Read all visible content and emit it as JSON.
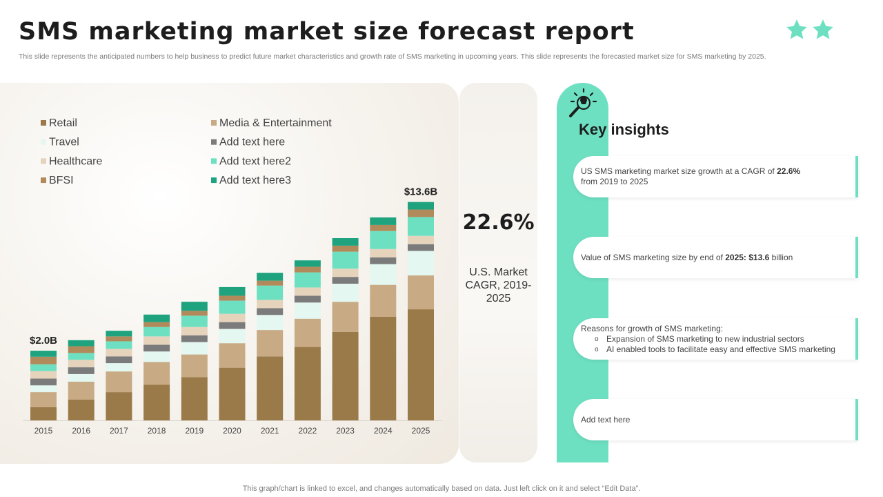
{
  "title": "SMS marketing market size forecast report",
  "subtitle": "This slide represents the anticipated numbers to help business to predict future market characteristics and growth rate of SMS  marketing in upcoming years. This slide represents the forecasted market size for SMS marketing by 2025.",
  "colors": {
    "accent": "#6ee0c2",
    "dark_green": "#1fa37f"
  },
  "chart_data": {
    "type": "bar",
    "stacked": true,
    "categories": [
      "2015",
      "2016",
      "2017",
      "2018",
      "2019",
      "2020",
      "2021",
      "2022",
      "2023",
      "2024",
      "2025"
    ],
    "series": [
      {
        "name": "Retail",
        "color": "#9b7a4a",
        "values": [
          0.35,
          0.55,
          0.75,
          0.95,
          1.15,
          1.4,
          1.7,
          1.95,
          2.35,
          2.75,
          2.95
        ]
      },
      {
        "name": "Media & Entertainment",
        "color": "#c8aa84",
        "values": [
          0.4,
          0.48,
          0.55,
          0.6,
          0.6,
          0.65,
          0.7,
          0.75,
          0.8,
          0.85,
          0.9
        ]
      },
      {
        "name": "Travel",
        "color": "#e4f7f1",
        "values": [
          0.18,
          0.2,
          0.22,
          0.28,
          0.33,
          0.38,
          0.4,
          0.43,
          0.48,
          0.55,
          0.65
        ]
      },
      {
        "name": "Add text here",
        "color": "#7b7b7b",
        "values": [
          0.18,
          0.18,
          0.18,
          0.18,
          0.18,
          0.18,
          0.18,
          0.18,
          0.18,
          0.18,
          0.18
        ]
      },
      {
        "name": "Healthcare",
        "color": "#e6d3bc",
        "values": [
          0.2,
          0.2,
          0.2,
          0.22,
          0.22,
          0.22,
          0.22,
          0.22,
          0.22,
          0.22,
          0.22
        ]
      },
      {
        "name": "Add text here2",
        "color": "#6ee0c2",
        "values": [
          0.18,
          0.18,
          0.2,
          0.25,
          0.3,
          0.35,
          0.38,
          0.4,
          0.45,
          0.48,
          0.5
        ]
      },
      {
        "name": "BFSI",
        "color": "#b08a5a",
        "values": [
          0.2,
          0.18,
          0.13,
          0.13,
          0.13,
          0.13,
          0.13,
          0.15,
          0.16,
          0.16,
          0.2
        ]
      },
      {
        "name": "Add text here3",
        "color": "#1fa37f",
        "values": [
          0.16,
          0.16,
          0.15,
          0.2,
          0.24,
          0.23,
          0.21,
          0.17,
          0.2,
          0.2,
          0.2
        ]
      }
    ],
    "legend": [
      [
        "Retail",
        "Media & Entertainment"
      ],
      [
        "Travel",
        "Add text here"
      ],
      [
        "Healthcare",
        "Add text here2"
      ],
      [
        "BFSI",
        "Add text here3"
      ]
    ],
    "annotations": [
      {
        "category": "2015",
        "text": "$2.0B"
      },
      {
        "category": "2025",
        "text": "$13.6B"
      }
    ],
    "legend_position": "top-left",
    "grid": false,
    "ylim": [
      0,
      6.6
    ]
  },
  "cagr": {
    "value": "22.6%",
    "label_lines": [
      "U.S. Market",
      "CAGR, 2019-",
      "2025"
    ]
  },
  "insights": {
    "title": "Key insights",
    "card1": {
      "pre": "US SMS marketing market size  growth at a CAGR of ",
      "bold": "22.6%",
      "post": "from 2019 to 2025"
    },
    "card2": {
      "pre": "Value of SMS marketing size by end of ",
      "bold": "2025: $13.6",
      "post": " billion"
    },
    "card3": {
      "heading": "Reasons for growth  of SMS marketing:",
      "items": [
        "Expansion of SMS marketing to new industrial sectors",
        "AI enabled tools to facilitate easy and effective SMS marketing"
      ]
    },
    "card4": {
      "text": "Add text here"
    }
  },
  "footer": "This graph/chart is linked to excel,  and changes automatically based on data. Just left click on it and select “Edit Data”."
}
